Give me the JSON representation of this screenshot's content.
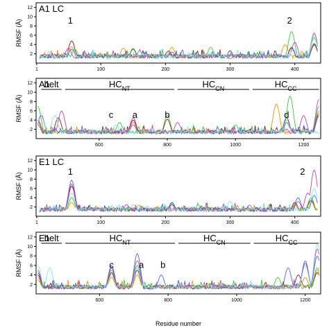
{
  "chart_data": [
    {
      "type": "line",
      "title": "A1 LC",
      "ylabel": "RMSF (Å)",
      "xlim": [
        0,
        440
      ],
      "ylim": [
        0,
        13
      ],
      "xticks": [
        1,
        100,
        200,
        300,
        400
      ],
      "yticks": [
        2,
        4,
        6,
        8,
        10,
        12
      ],
      "series_colors": [
        "#8b1a1a",
        "#ff8c00",
        "#32cd32",
        "#4169e1",
        "#c040c0",
        "#7fe5e5"
      ],
      "series_peaks": [
        [
          [
            55,
            4.8
          ],
          [
            150,
            3.0
          ],
          [
            205,
            2.6
          ],
          [
            300,
            2.6
          ],
          [
            395,
            3.4
          ],
          [
            430,
            4.2
          ]
        ],
        [
          [
            55,
            3.5
          ],
          [
            135,
            3.2
          ],
          [
            210,
            3.4
          ],
          [
            385,
            4.0
          ],
          [
            430,
            3.8
          ]
        ],
        [
          [
            60,
            3.0
          ],
          [
            150,
            3.2
          ],
          [
            270,
            3.4
          ],
          [
            395,
            6.8
          ],
          [
            430,
            5.5
          ]
        ],
        [
          [
            55,
            3.0
          ],
          [
            210,
            2.4
          ],
          [
            395,
            3.2
          ],
          [
            430,
            4.0
          ]
        ],
        [
          [
            50,
            3.2
          ],
          [
            160,
            2.6
          ],
          [
            400,
            4.5
          ],
          [
            430,
            6.5
          ]
        ],
        [
          [
            55,
            2.8
          ],
          [
            300,
            2.8
          ],
          [
            398,
            3.0
          ],
          [
            430,
            6.0
          ]
        ]
      ],
      "annotations": [
        {
          "text": "1",
          "x": 53,
          "y": 8.5
        },
        {
          "text": "2",
          "x": 392,
          "y": 8.5
        }
      ],
      "regions": []
    },
    {
      "type": "line",
      "title": "A1",
      "ylabel": "RMSF (Å)",
      "xlim": [
        415,
        1250
      ],
      "ylim": [
        0,
        13
      ],
      "xticks": [
        600,
        800,
        1000,
        1200
      ],
      "yticks": [
        2,
        4,
        6,
        8,
        10,
        12
      ],
      "series_colors": [
        "#8b1a1a",
        "#ff8c00",
        "#32cd32",
        "#4169e1",
        "#c040c0",
        "#7fe5e5"
      ],
      "series_peaks": [
        [
          [
            420,
            4.0
          ],
          [
            480,
            4.5
          ],
          [
            700,
            4.0
          ],
          [
            800,
            4.2
          ],
          [
            1150,
            4.5
          ],
          [
            1245,
            5.0
          ]
        ],
        [
          [
            420,
            3.5
          ],
          [
            700,
            3.5
          ],
          [
            1120,
            7.5
          ],
          [
            1245,
            6.0
          ]
        ],
        [
          [
            420,
            7.0
          ],
          [
            660,
            3.5
          ],
          [
            800,
            5.0
          ],
          [
            1000,
            3.0
          ],
          [
            1160,
            9.2
          ],
          [
            1245,
            7.0
          ]
        ],
        [
          [
            420,
            3.0
          ],
          [
            700,
            3.0
          ],
          [
            1150,
            3.5
          ],
          [
            1245,
            5.5
          ]
        ],
        [
          [
            430,
            5.0
          ],
          [
            490,
            6.0
          ],
          [
            700,
            4.5
          ],
          [
            830,
            3.5
          ],
          [
            1200,
            5.0
          ],
          [
            1245,
            8.5
          ]
        ],
        [
          [
            430,
            5.5
          ],
          [
            470,
            5.0
          ],
          [
            650,
            3.0
          ],
          [
            1150,
            4.0
          ]
        ]
      ],
      "annotations": [
        {
          "text": "c",
          "x": 635,
          "y": 4.5
        },
        {
          "text": "a",
          "x": 705,
          "y": 4.5
        },
        {
          "text": "b",
          "x": 800,
          "y": 4.5
        },
        {
          "text": "d",
          "x": 1150,
          "y": 4.5
        }
      ],
      "regions": [
        {
          "label": "belt",
          "sub": "",
          "x0": 430,
          "x1": 490
        },
        {
          "label": "HC",
          "sub": "NT",
          "x0": 500,
          "x1": 820
        },
        {
          "label": "HC",
          "sub": "CN",
          "x0": 830,
          "x1": 1040
        },
        {
          "label": "HC",
          "sub": "CC",
          "x0": 1050,
          "x1": 1245
        }
      ]
    },
    {
      "type": "line",
      "title": "E1 LC",
      "ylabel": "RMSF (Å)",
      "xlim": [
        0,
        440
      ],
      "ylim": [
        0,
        13
      ],
      "xticks": [
        1,
        100,
        200,
        300,
        400
      ],
      "yticks": [
        2,
        4,
        6,
        8,
        10,
        12
      ],
      "series_colors": [
        "#8b1a1a",
        "#ff8c00",
        "#32cd32",
        "#4169e1",
        "#c040c0",
        "#7fe5e5"
      ],
      "series_peaks": [
        [
          [
            55,
            6.5
          ],
          [
            210,
            2.5
          ],
          [
            400,
            3.0
          ],
          [
            425,
            3.5
          ]
        ],
        [
          [
            55,
            3.0
          ],
          [
            160,
            2.4
          ],
          [
            400,
            2.8
          ],
          [
            425,
            3.2
          ]
        ],
        [
          [
            55,
            4.0
          ],
          [
            210,
            2.8
          ],
          [
            400,
            2.5
          ],
          [
            425,
            4.0
          ]
        ],
        [
          [
            55,
            7.8
          ],
          [
            210,
            3.0
          ],
          [
            330,
            2.4
          ],
          [
            405,
            4.0
          ],
          [
            430,
            4.5
          ]
        ],
        [
          [
            55,
            7.0
          ],
          [
            140,
            2.5
          ],
          [
            405,
            3.2
          ],
          [
            420,
            5.0
          ],
          [
            430,
            10.0
          ]
        ],
        [
          [
            55,
            5.0
          ],
          [
            150,
            2.5
          ],
          [
            300,
            3.2
          ],
          [
            430,
            6.0
          ]
        ]
      ],
      "annotations": [
        {
          "text": "1",
          "x": 53,
          "y": 9.0
        },
        {
          "text": "2",
          "x": 412,
          "y": 9.0
        }
      ],
      "regions": []
    },
    {
      "type": "line",
      "title": "E1",
      "ylabel": "RMSF (Å)",
      "xlabel": "Residue number",
      "xlim": [
        415,
        1245
      ],
      "ylim": [
        0,
        13
      ],
      "xticks": [
        600,
        800,
        1000,
        1200
      ],
      "yticks": [
        2,
        4,
        6,
        8,
        10,
        12
      ],
      "series_colors": [
        "#8b1a1a",
        "#ff8c00",
        "#32cd32",
        "#4169e1",
        "#c040c0",
        "#7fe5e5"
      ],
      "series_peaks": [
        [
          [
            420,
            4.0
          ],
          [
            635,
            4.5
          ],
          [
            710,
            5.0
          ],
          [
            1180,
            4.0
          ],
          [
            1235,
            4.5
          ]
        ],
        [
          [
            420,
            3.5
          ],
          [
            635,
            3.5
          ],
          [
            710,
            4.0
          ],
          [
            1200,
            3.5
          ],
          [
            1235,
            5.0
          ]
        ],
        [
          [
            420,
            3.0
          ],
          [
            635,
            5.0
          ],
          [
            710,
            6.0
          ],
          [
            1120,
            3.5
          ],
          [
            1235,
            5.5
          ]
        ],
        [
          [
            420,
            4.5
          ],
          [
            635,
            6.0
          ],
          [
            710,
            8.5
          ],
          [
            780,
            4.0
          ],
          [
            1150,
            5.5
          ],
          [
            1200,
            7.0
          ],
          [
            1235,
            8.0
          ]
        ],
        [
          [
            420,
            5.0
          ],
          [
            635,
            5.5
          ],
          [
            710,
            7.0
          ],
          [
            1200,
            6.5
          ],
          [
            1235,
            9.5
          ]
        ],
        [
          [
            420,
            6.0
          ],
          [
            455,
            5.5
          ],
          [
            635,
            4.0
          ],
          [
            710,
            5.5
          ],
          [
            1200,
            6.0
          ],
          [
            1235,
            10.5
          ]
        ]
      ],
      "annotations": [
        {
          "text": "c",
          "x": 635,
          "y": 5.5
        },
        {
          "text": "a",
          "x": 722,
          "y": 5.5
        },
        {
          "text": "b",
          "x": 785,
          "y": 5.5
        }
      ],
      "regions": [
        {
          "label": "belt",
          "sub": "",
          "x0": 430,
          "x1": 490
        },
        {
          "label": "HC",
          "sub": "NT",
          "x0": 500,
          "x1": 820
        },
        {
          "label": "HC",
          "sub": "CN",
          "x0": 830,
          "x1": 1040
        },
        {
          "label": "HC",
          "sub": "CC",
          "x0": 1050,
          "x1": 1240
        }
      ]
    }
  ],
  "xlabel_global": "Residue number"
}
